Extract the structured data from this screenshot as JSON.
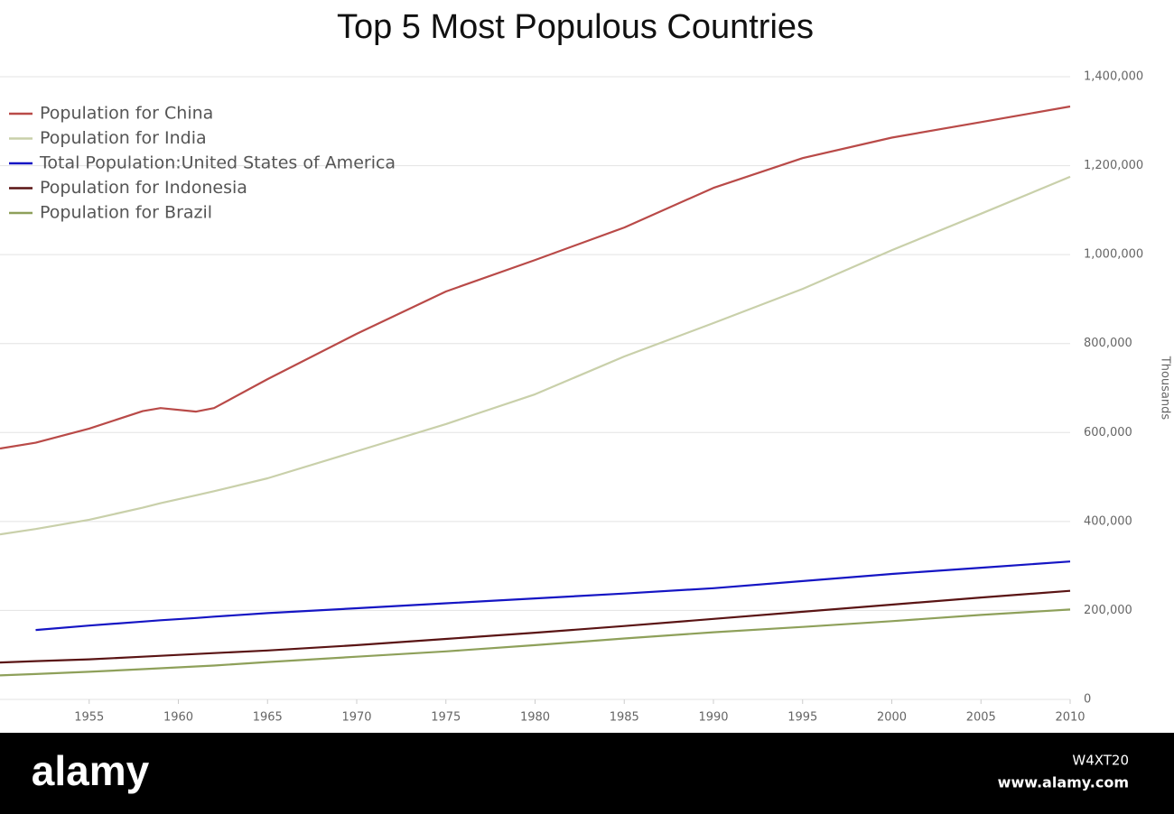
{
  "chart_data": {
    "type": "line",
    "title": "Top 5 Most Populous Countries",
    "y_axis_label": "Thousands",
    "x": [
      1950,
      1952,
      1955,
      1958,
      1959,
      1961,
      1962,
      1965,
      1970,
      1975,
      1980,
      1985,
      1990,
      1995,
      2000,
      2005,
      2010
    ],
    "series": [
      {
        "name": "Population for China",
        "color": "#b94a48",
        "values": [
          564000,
          577000,
          609000,
          648000,
          655000,
          647000,
          655000,
          720000,
          822000,
          917000,
          988000,
          1061000,
          1150000,
          1217000,
          1263000,
          1298000,
          1333000
        ]
      },
      {
        "name": "Population for India",
        "color": "#c9d0aa",
        "values": [
          371000,
          383000,
          404000,
          431000,
          441000,
          459000,
          468000,
          497000,
          558000,
          619000,
          686000,
          771000,
          846000,
          923000,
          1010000,
          1092000,
          1175000
        ]
      },
      {
        "name": "Total Population:United States of America",
        "color": "#1515c4",
        "values": [
          null,
          156000,
          166000,
          175000,
          178000,
          183000,
          186000,
          194000,
          205000,
          216000,
          227000,
          238000,
          250000,
          266000,
          282000,
          296000,
          310000
        ]
      },
      {
        "name": "Population for Indonesia",
        "color": "#5a1414",
        "values": [
          83000,
          86000,
          90000,
          96000,
          98000,
          102000,
          104000,
          110000,
          122000,
          136000,
          150000,
          165000,
          181000,
          197000,
          213000,
          229000,
          244000
        ]
      },
      {
        "name": "Population for Brazil",
        "color": "#8ea05a",
        "values": [
          54000,
          57000,
          62000,
          68000,
          70000,
          74000,
          76000,
          84000,
          96000,
          108000,
          122000,
          137000,
          151000,
          163000,
          176000,
          190000,
          202000
        ]
      }
    ],
    "xlim": [
      1950,
      2010
    ],
    "xticks": [
      1955,
      1960,
      1965,
      1970,
      1975,
      1980,
      1985,
      1990,
      1995,
      2000,
      2005,
      2010
    ],
    "ylim": [
      0,
      1400000
    ],
    "yticks": [
      0,
      {
        "value": 200000,
        "label": "200,000"
      },
      {
        "value": 400000,
        "label": "400,000"
      },
      {
        "value": 600000,
        "label": "600,000"
      },
      {
        "value": 800000,
        "label": "800,000"
      },
      {
        "value": 1000000,
        "label": "1,000,000"
      },
      {
        "value": 1200000,
        "label": "1,200,000"
      },
      {
        "value": 1400000,
        "label": "1,400,000"
      }
    ],
    "grid": true,
    "legend": "top-left"
  },
  "watermark": {
    "logo": "alamy",
    "code": "W4XT20",
    "url": "www.alamy.com"
  }
}
